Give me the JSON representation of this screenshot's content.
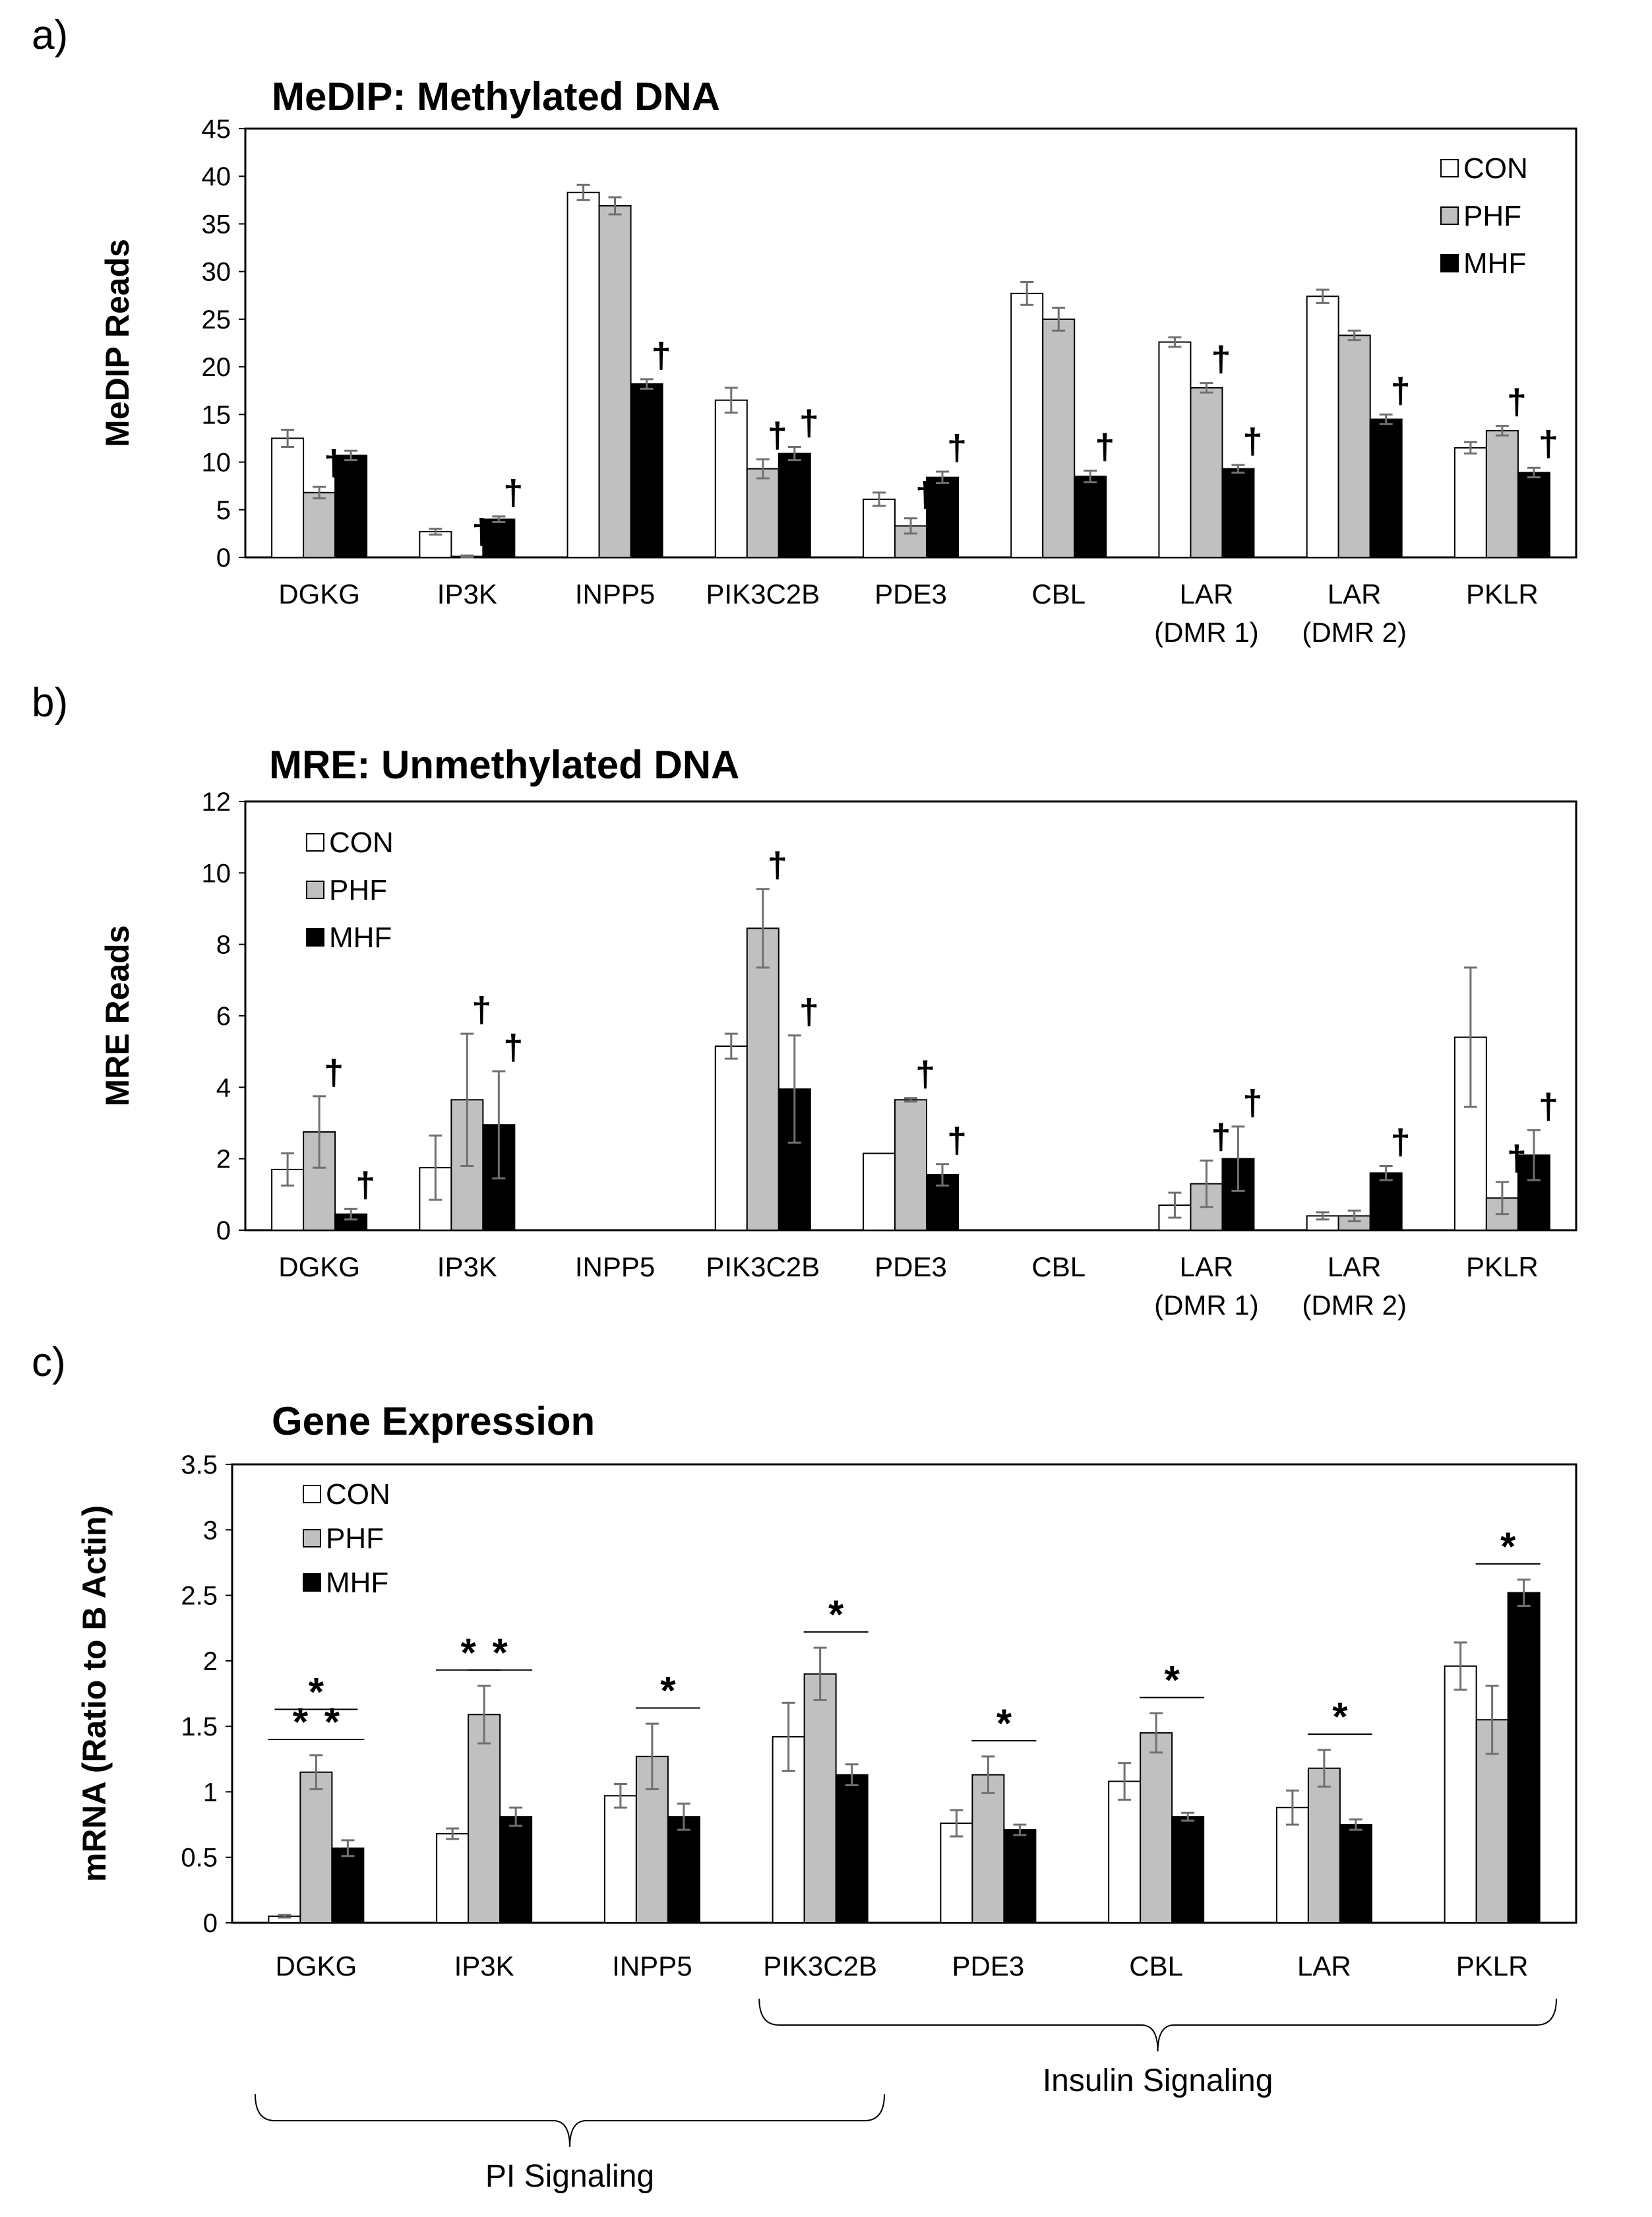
{
  "panels": [
    {
      "letter": "a)",
      "title": "MeDIP: Methylated DNA"
    },
    {
      "letter": "b)",
      "title": "MRE: Unmethylated DNA"
    },
    {
      "letter": "c)",
      "title": "Gene Expression"
    }
  ],
  "colors": {
    "CON": "#ffffff",
    "PHF": "#c0c0c0",
    "MHF": "#000000",
    "error_bar": "#707070"
  },
  "brace_labels": {
    "pi": "PI Signaling",
    "insulin": "Insulin Signaling"
  },
  "chart_data": [
    {
      "type": "bar",
      "title": "MeDIP: Methylated DNA",
      "ylabel": "MeDIP Reads",
      "ylim": [
        0,
        45
      ],
      "yticks": [
        0,
        5,
        10,
        15,
        20,
        25,
        30,
        35,
        40,
        45
      ],
      "categories": [
        "DGKG",
        "IP3K",
        "INPP5",
        "PIK3C2B",
        "PDE3",
        "CBL",
        "LAR\n(DMR 1)",
        "LAR\n(DMR 2)",
        "PKLR"
      ],
      "legend_position": "top-right",
      "series": [
        {
          "name": "CON",
          "values": [
            12.5,
            2.7,
            38.3,
            16.5,
            6.1,
            27.7,
            22.6,
            27.4,
            11.5
          ],
          "errors": [
            0.9,
            0.3,
            0.8,
            1.3,
            0.7,
            1.2,
            0.5,
            0.7,
            0.6
          ]
        },
        {
          "name": "PHF",
          "values": [
            6.8,
            0.1,
            36.9,
            9.3,
            3.3,
            25.0,
            17.8,
            23.3,
            13.3
          ],
          "errors": [
            0.6,
            0.1,
            0.9,
            1.0,
            0.8,
            1.2,
            0.5,
            0.5,
            0.5
          ]
        },
        {
          "name": "MHF",
          "values": [
            10.7,
            4.0,
            18.2,
            10.9,
            8.4,
            8.5,
            9.3,
            14.5,
            8.9
          ],
          "errors": [
            0.5,
            0.3,
            0.5,
            0.7,
            0.6,
            0.6,
            0.4,
            0.5,
            0.5
          ]
        }
      ],
      "annotations": [
        {
          "symbol": "†",
          "category": 0,
          "series": 1
        },
        {
          "symbol": "†",
          "category": 1,
          "series": 1
        },
        {
          "symbol": "†",
          "category": 1,
          "series": 2
        },
        {
          "symbol": "†",
          "category": 2,
          "series": 2
        },
        {
          "symbol": "†",
          "category": 3,
          "series": 1
        },
        {
          "symbol": "†",
          "category": 3,
          "series": 2
        },
        {
          "symbol": "†",
          "category": 4,
          "series": 1
        },
        {
          "symbol": "†",
          "category": 4,
          "series": 2
        },
        {
          "symbol": "†",
          "category": 5,
          "series": 2
        },
        {
          "symbol": "†",
          "category": 6,
          "series": 1
        },
        {
          "symbol": "†",
          "category": 6,
          "series": 2
        },
        {
          "symbol": "†",
          "category": 7,
          "series": 2
        },
        {
          "symbol": "†",
          "category": 8,
          "series": 1
        },
        {
          "symbol": "†",
          "category": 8,
          "series": 2
        }
      ]
    },
    {
      "type": "bar",
      "title": "MRE: Unmethylated DNA",
      "ylabel": "MRE Reads",
      "ylim": [
        0,
        12
      ],
      "yticks": [
        0,
        2,
        4,
        6,
        8,
        10,
        12
      ],
      "categories": [
        "DGKG",
        "IP3K",
        "INPP5",
        "PIK3C2B",
        "PDE3",
        "CBL",
        "LAR\n(DMR 1)",
        "LAR\n(DMR 2)",
        "PKLR"
      ],
      "legend_position": "top-left",
      "series": [
        {
          "name": "CON",
          "values": [
            1.7,
            1.75,
            0,
            5.15,
            2.15,
            0,
            0.7,
            0.4,
            5.4
          ],
          "errors": [
            0.45,
            0.9,
            0,
            0.35,
            0,
            0,
            0.35,
            0.1,
            1.95
          ]
        },
        {
          "name": "PHF",
          "values": [
            2.75,
            3.65,
            0,
            8.45,
            3.65,
            0,
            1.3,
            0.4,
            0.9
          ],
          "errors": [
            1.0,
            1.85,
            0,
            1.1,
            0.05,
            0,
            0.65,
            0.15,
            0.45
          ]
        },
        {
          "name": "MHF",
          "values": [
            0.45,
            2.95,
            0,
            3.95,
            1.55,
            0,
            2.0,
            1.6,
            2.1
          ],
          "errors": [
            0.15,
            1.5,
            0,
            1.5,
            0.3,
            0,
            0.9,
            0.2,
            0.7
          ]
        }
      ],
      "annotations": [
        {
          "symbol": "†",
          "category": 0,
          "series": 1
        },
        {
          "symbol": "†",
          "category": 0,
          "series": 2
        },
        {
          "symbol": "†",
          "category": 1,
          "series": 1
        },
        {
          "symbol": "†",
          "category": 1,
          "series": 2
        },
        {
          "symbol": "†",
          "category": 3,
          "series": 1
        },
        {
          "symbol": "†",
          "category": 3,
          "series": 2
        },
        {
          "symbol": "†",
          "category": 4,
          "series": 1
        },
        {
          "symbol": "†",
          "category": 4,
          "series": 2
        },
        {
          "symbol": "†",
          "category": 6,
          "series": 1
        },
        {
          "symbol": "†",
          "category": 6,
          "series": 2
        },
        {
          "symbol": "†",
          "category": 7,
          "series": 2
        },
        {
          "symbol": "†",
          "category": 8,
          "series": 1
        },
        {
          "symbol": "†",
          "category": 8,
          "series": 2
        }
      ]
    },
    {
      "type": "bar",
      "title": "Gene Expression",
      "ylabel": "mRNA (Ratio to B Actin)",
      "ylim": [
        0,
        3.5
      ],
      "yticks": [
        0,
        0.5,
        1,
        1.5,
        2,
        2.5,
        3,
        3.5
      ],
      "categories": [
        "DGKG",
        "IP3K",
        "INPP5",
        "PIK3C2B",
        "PDE3",
        "CBL",
        "LAR",
        "PKLR"
      ],
      "legend_position": "top-left",
      "series": [
        {
          "name": "CON",
          "values": [
            0.05,
            0.68,
            0.97,
            1.42,
            0.76,
            1.08,
            0.88,
            1.96
          ],
          "errors": [
            0.01,
            0.04,
            0.09,
            0.26,
            0.1,
            0.14,
            0.13,
            0.18
          ]
        },
        {
          "name": "PHF",
          "values": [
            1.15,
            1.59,
            1.27,
            1.9,
            1.13,
            1.45,
            1.18,
            1.55
          ],
          "errors": [
            0.13,
            0.22,
            0.25,
            0.2,
            0.14,
            0.15,
            0.14,
            0.26
          ]
        },
        {
          "name": "MHF",
          "values": [
            0.57,
            0.81,
            0.81,
            1.13,
            0.71,
            0.81,
            0.75,
            2.52
          ],
          "errors": [
            0.06,
            0.07,
            0.1,
            0.08,
            0.04,
            0.03,
            0.04,
            0.1
          ]
        }
      ],
      "significance": [
        {
          "symbol": "*",
          "category": 0,
          "from": 0,
          "to": 1
        },
        {
          "symbol": "*",
          "category": 0,
          "from": 1,
          "to": 2
        },
        {
          "symbol": "*",
          "category": 0,
          "from": 0,
          "to": 2
        },
        {
          "symbol": "*",
          "category": 1,
          "from": 0,
          "to": 1
        },
        {
          "symbol": "*",
          "category": 1,
          "from": 1,
          "to": 2
        },
        {
          "symbol": "*",
          "category": 2,
          "from": 1,
          "to": 2
        },
        {
          "symbol": "*",
          "category": 3,
          "from": 1,
          "to": 2
        },
        {
          "symbol": "*",
          "category": 4,
          "from": 1,
          "to": 2
        },
        {
          "symbol": "*",
          "category": 5,
          "from": 1,
          "to": 2
        },
        {
          "symbol": "*",
          "category": 6,
          "from": 1,
          "to": 2
        },
        {
          "symbol": "*",
          "category": 7,
          "from": 1,
          "to": 2
        }
      ],
      "groups": [
        {
          "label": "PI Signaling",
          "from": 0,
          "to": 3
        },
        {
          "label": "Insulin Signaling",
          "from": 3,
          "to": 7
        }
      ]
    }
  ]
}
